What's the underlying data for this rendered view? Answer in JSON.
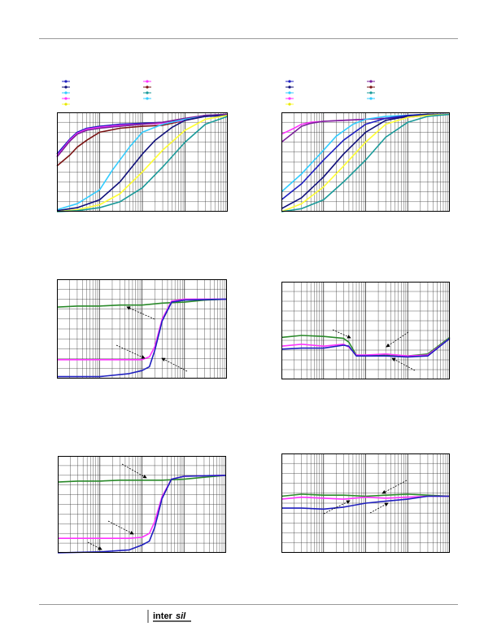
{
  "page": {
    "logo_text": "intersil"
  },
  "style": {
    "grid_color": "#333333",
    "frame_color": "#000000",
    "series_colors": {
      "blue": "#1f1fbf",
      "navy": "#141470",
      "magenta": "#ff33ff",
      "purple": "#7a1f9a",
      "maroon": "#7a1414",
      "cyan": "#33ccff",
      "teal": "#1a9a9a",
      "yellow": "#ffff33",
      "green": "#2a8a2a",
      "darkblue": "#10107a"
    }
  },
  "chart_data": [
    {
      "type": "line",
      "title": "",
      "xlabel": "",
      "ylabel": "",
      "xscale": "log",
      "xlim": [
        1,
        10000
      ],
      "ylim": [
        0,
        100
      ],
      "grid": true,
      "legend": "top-left",
      "series": [
        {
          "color": "#7a1414",
          "x": [
            1,
            2,
            3,
            5,
            10,
            30,
            100,
            300,
            1000,
            3000,
            10000
          ],
          "y": [
            46,
            57,
            65,
            72,
            80,
            84,
            86,
            87,
            92,
            96,
            97
          ]
        },
        {
          "color": "#1f1fbf",
          "x": [
            1,
            2,
            3,
            5,
            10,
            30,
            100,
            300,
            1000,
            3000,
            10000
          ],
          "y": [
            58,
            73,
            80,
            84,
            86,
            88,
            89,
            90,
            93,
            97,
            98
          ]
        },
        {
          "color": "#ff33ff",
          "x": [
            1,
            2,
            3,
            5,
            10,
            30,
            100,
            300,
            1000,
            3000,
            10000
          ],
          "y": [
            56,
            72,
            79,
            83,
            85,
            87,
            88,
            89,
            92,
            96,
            97
          ]
        },
        {
          "color": "#7a1f9a",
          "x": [
            1,
            2,
            3,
            5,
            10,
            30,
            100,
            300,
            1000,
            3000,
            10000
          ],
          "y": [
            55,
            71,
            78,
            82,
            84,
            86,
            88,
            90,
            94,
            97,
            98
          ]
        },
        {
          "color": "#33ccff",
          "x": [
            1,
            3,
            10,
            20,
            50,
            100,
            300,
            1000,
            3000,
            10000
          ],
          "y": [
            2,
            8,
            22,
            42,
            65,
            80,
            88,
            93,
            96,
            97
          ]
        },
        {
          "color": "#10107a",
          "x": [
            1,
            3,
            10,
            30,
            100,
            200,
            500,
            1000,
            3000,
            10000
          ],
          "y": [
            1,
            4,
            12,
            30,
            58,
            72,
            85,
            92,
            96,
            97
          ]
        },
        {
          "color": "#ffff33",
          "x": [
            1,
            3,
            10,
            30,
            100,
            300,
            1000,
            3000,
            10000
          ],
          "y": [
            0,
            2,
            7,
            18,
            40,
            62,
            82,
            93,
            97
          ]
        },
        {
          "color": "#1a9a9a",
          "x": [
            1,
            3,
            10,
            30,
            100,
            300,
            1000,
            3000,
            10000
          ],
          "y": [
            0,
            1,
            4,
            10,
            24,
            45,
            70,
            88,
            96
          ]
        }
      ]
    },
    {
      "type": "line",
      "title": "",
      "xlabel": "",
      "ylabel": "",
      "xscale": "log",
      "xlim": [
        1,
        10000
      ],
      "ylim": [
        0,
        100
      ],
      "grid": true,
      "legend": "top-left",
      "series": [
        {
          "color": "#ff33ff",
          "x": [
            1,
            2,
            3,
            5,
            10,
            30,
            100,
            300,
            1000,
            3000,
            10000
          ],
          "y": [
            78,
            84,
            88,
            90,
            91,
            92,
            93,
            94,
            95,
            97,
            98
          ]
        },
        {
          "color": "#7a1f9a",
          "x": [
            1,
            2,
            3,
            5,
            10,
            30,
            100,
            300,
            1000,
            3000,
            10000
          ],
          "y": [
            70,
            80,
            86,
            89,
            91,
            92,
            93,
            94,
            95,
            97,
            98
          ]
        },
        {
          "color": "#33ccff",
          "x": [
            1,
            3,
            10,
            20,
            50,
            100,
            300,
            1000,
            3000,
            10000
          ],
          "y": [
            20,
            38,
            62,
            76,
            88,
            93,
            96,
            97,
            98,
            98
          ]
        },
        {
          "color": "#1f1fbf",
          "x": [
            1,
            3,
            10,
            30,
            100,
            300,
            1000,
            3000,
            10000
          ],
          "y": [
            12,
            28,
            52,
            72,
            88,
            94,
            97,
            98,
            98
          ]
        },
        {
          "color": "#10107a",
          "x": [
            1,
            3,
            10,
            30,
            100,
            300,
            1000,
            3000,
            10000
          ],
          "y": [
            3,
            14,
            35,
            58,
            80,
            92,
            96,
            98,
            98
          ]
        },
        {
          "color": "#ffff33",
          "x": [
            1,
            3,
            10,
            30,
            100,
            300,
            1000,
            3000,
            10000
          ],
          "y": [
            0,
            8,
            25,
            46,
            70,
            88,
            95,
            97,
            98
          ]
        },
        {
          "color": "#1a9a9a",
          "x": [
            1,
            3,
            10,
            30,
            100,
            300,
            1000,
            3000,
            10000
          ],
          "y": [
            0,
            3,
            12,
            30,
            52,
            75,
            90,
            96,
            98
          ]
        }
      ]
    },
    {
      "type": "line",
      "title": "",
      "xlabel": "",
      "ylabel": "",
      "xscale": "log",
      "xlim": [
        1,
        10000
      ],
      "ylim": [
        0,
        100
      ],
      "grid": true,
      "legend": "none",
      "series": [
        {
          "color": "#2a8a2a",
          "x": [
            1,
            3,
            10,
            30,
            100,
            300,
            1000,
            3000,
            10000
          ],
          "y": [
            72,
            73,
            73,
            74,
            74,
            76,
            77,
            79,
            80
          ]
        },
        {
          "color": "#ff33ff",
          "x": [
            1,
            10,
            50,
            100,
            150,
            200,
            300,
            500,
            1000,
            10000
          ],
          "y": [
            19,
            19,
            19,
            19,
            22,
            32,
            60,
            78,
            80,
            80
          ]
        },
        {
          "color": "#1f1fbf",
          "x": [
            1,
            10,
            50,
            100,
            150,
            200,
            300,
            500,
            1000,
            10000
          ],
          "y": [
            2,
            2,
            5,
            8,
            12,
            28,
            58,
            77,
            79,
            80
          ]
        }
      ]
    },
    {
      "type": "line",
      "title": "",
      "xlabel": "",
      "ylabel": "",
      "xscale": "log",
      "xlim": [
        1,
        10000
      ],
      "ylim": [
        0,
        100
      ],
      "grid": true,
      "legend": "none",
      "series": [
        {
          "color": "#2a8a2a",
          "x": [
            1,
            3,
            10,
            30,
            40,
            60,
            100,
            300,
            1000,
            3000,
            10000
          ],
          "y": [
            43,
            45,
            44,
            42,
            38,
            25,
            24,
            25,
            24,
            26,
            43
          ]
        },
        {
          "color": "#ff33ff",
          "x": [
            1,
            3,
            10,
            30,
            40,
            60,
            100,
            300,
            1000,
            3000,
            10000
          ],
          "y": [
            34,
            36,
            34,
            36,
            33,
            25,
            25,
            26,
            24,
            25,
            42
          ]
        },
        {
          "color": "#1f1fbf",
          "x": [
            1,
            3,
            10,
            30,
            40,
            60,
            100,
            300,
            1000,
            3000,
            10000
          ],
          "y": [
            31,
            32,
            32,
            35,
            34,
            24,
            24,
            24,
            23,
            24,
            42
          ]
        }
      ]
    },
    {
      "type": "line",
      "title": "",
      "xlabel": "",
      "ylabel": "",
      "xscale": "log",
      "xlim": [
        1,
        10000
      ],
      "ylim": [
        0,
        100
      ],
      "grid": true,
      "legend": "none",
      "series": [
        {
          "color": "#2a8a2a",
          "x": [
            1,
            3,
            10,
            30,
            100,
            300,
            1000,
            3000,
            10000
          ],
          "y": [
            73,
            74,
            74,
            75,
            75,
            75,
            76,
            78,
            80
          ]
        },
        {
          "color": "#ff33ff",
          "x": [
            1,
            10,
            50,
            100,
            150,
            200,
            300,
            500,
            1000,
            10000
          ],
          "y": [
            15,
            15,
            15,
            16,
            20,
            32,
            58,
            76,
            79,
            80
          ]
        },
        {
          "color": "#1f1fbf",
          "x": [
            1,
            10,
            50,
            100,
            150,
            200,
            300,
            500,
            1000,
            10000
          ],
          "y": [
            0,
            1,
            3,
            8,
            12,
            26,
            56,
            76,
            79,
            80
          ]
        }
      ]
    },
    {
      "type": "line",
      "title": "",
      "xlabel": "",
      "ylabel": "",
      "xscale": "log",
      "xlim": [
        1,
        10000
      ],
      "ylim": [
        0,
        100
      ],
      "grid": true,
      "legend": "none",
      "series": [
        {
          "color": "#2a8a2a",
          "x": [
            1,
            3,
            10,
            30,
            100,
            300,
            1000,
            3000,
            10000
          ],
          "y": [
            57,
            59,
            58,
            58,
            57,
            58,
            59,
            58,
            57
          ]
        },
        {
          "color": "#ff33ff",
          "x": [
            1,
            3,
            10,
            30,
            100,
            300,
            1000,
            3000,
            10000
          ],
          "y": [
            54,
            56,
            55,
            54,
            56,
            55,
            56,
            57,
            57
          ]
        },
        {
          "color": "#1f1fbf",
          "x": [
            1,
            3,
            10,
            30,
            100,
            300,
            1000,
            3000,
            10000
          ],
          "y": [
            45,
            45,
            44,
            46,
            50,
            52,
            54,
            57,
            57
          ]
        }
      ]
    }
  ]
}
